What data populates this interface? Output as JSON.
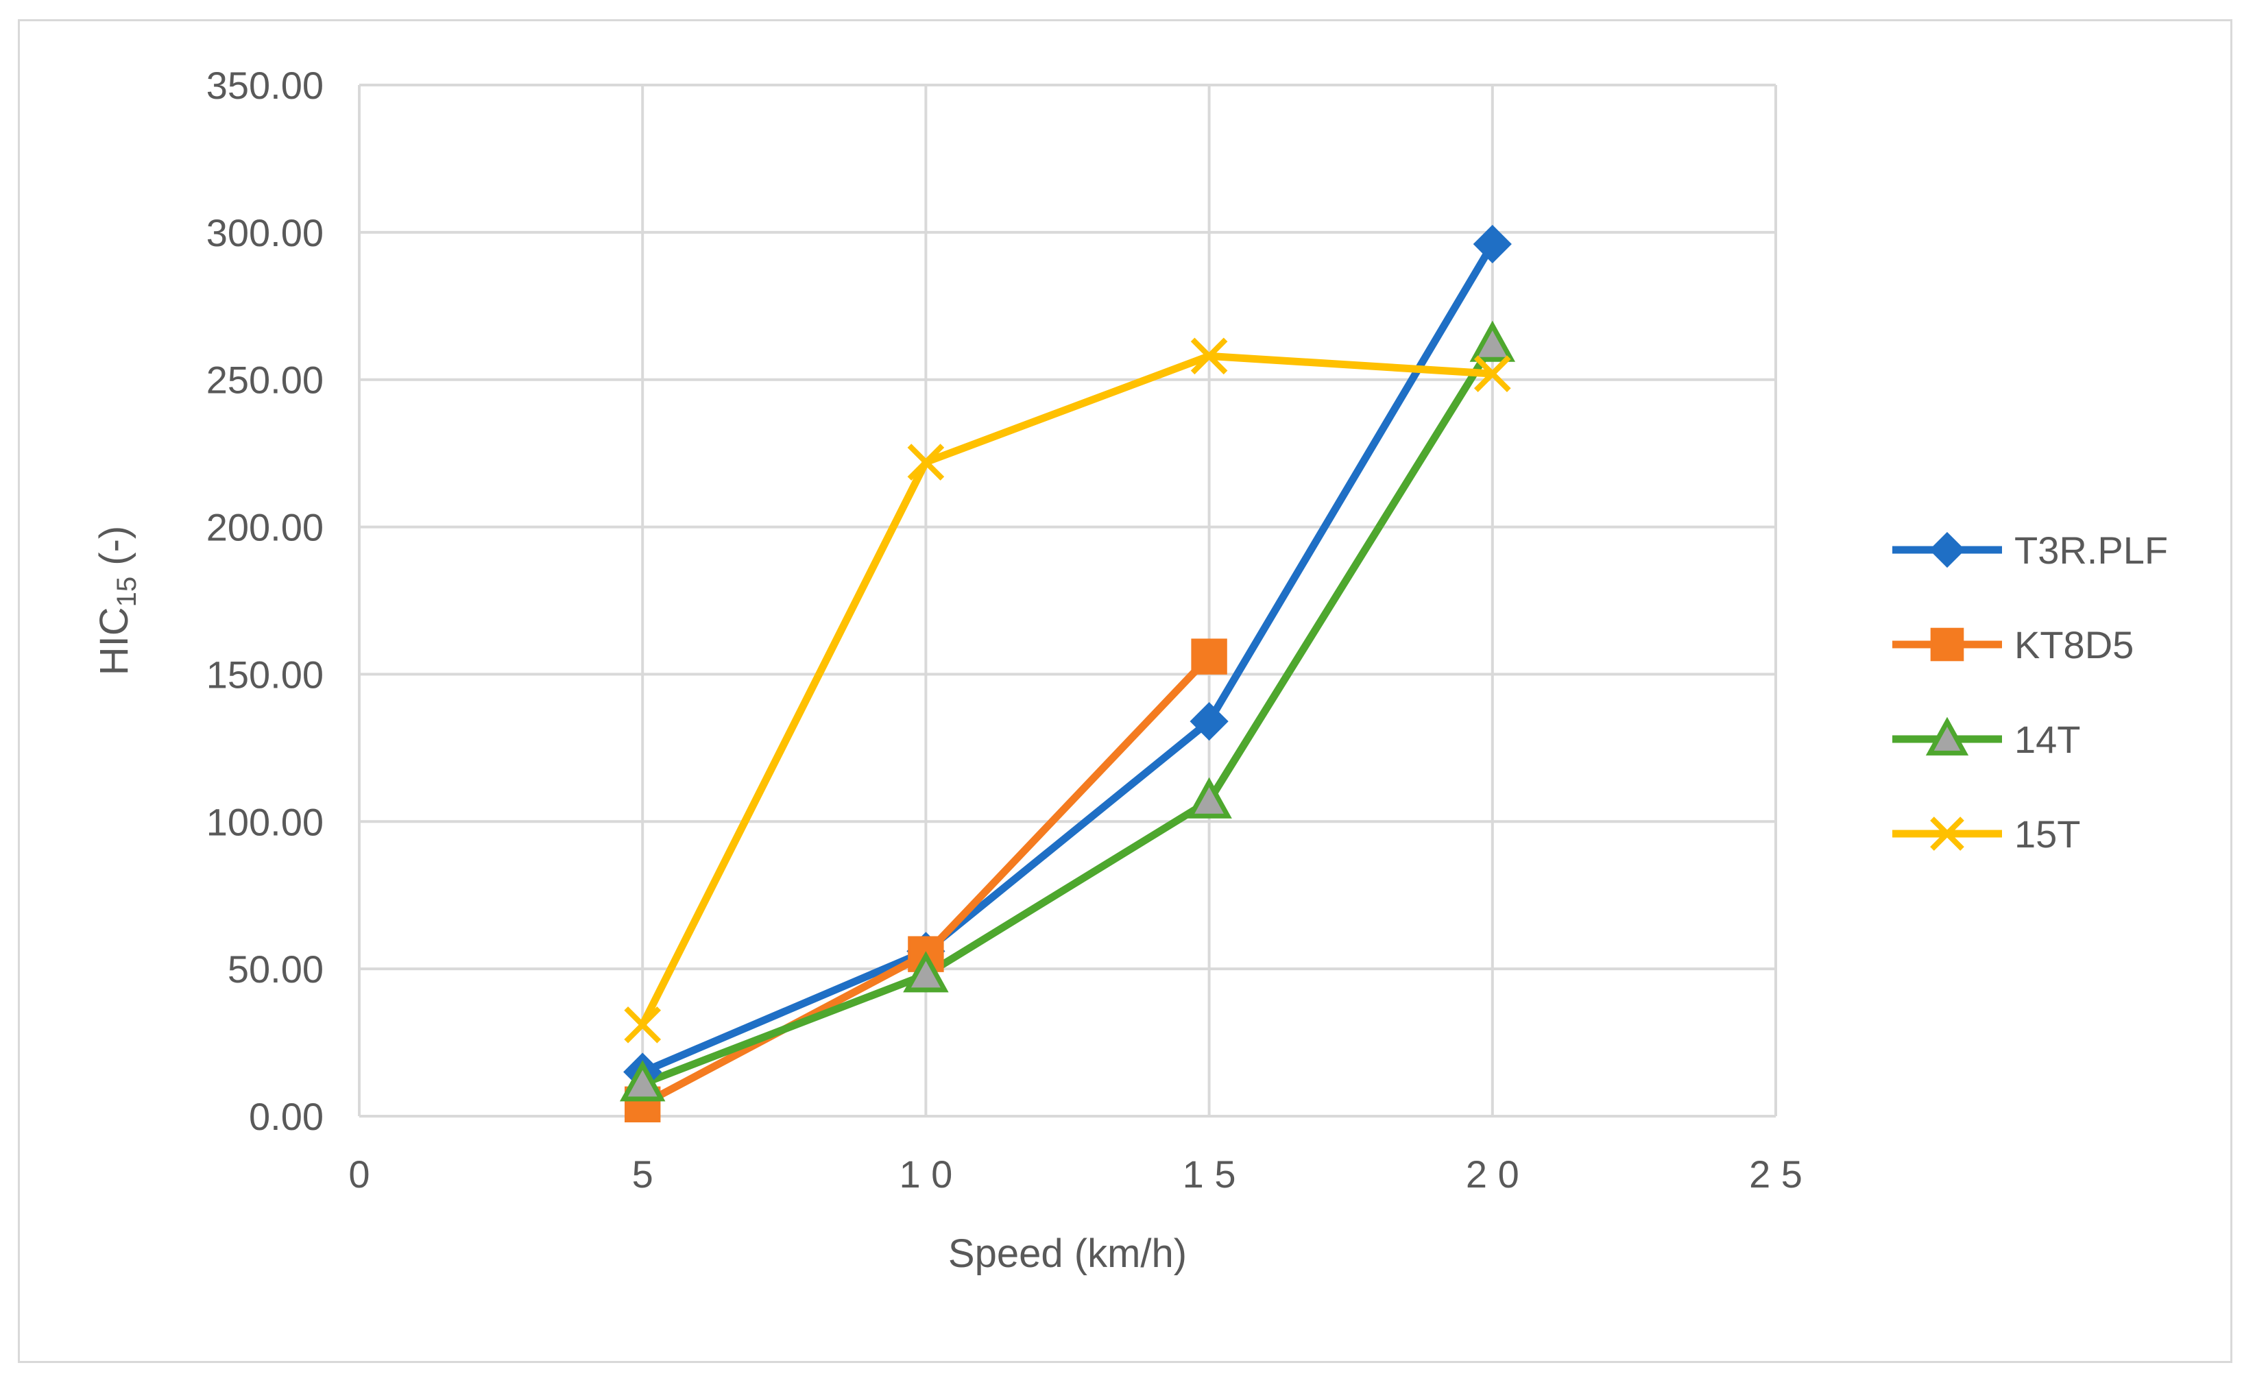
{
  "chart_data": {
    "type": "line",
    "title": "",
    "xlabel": "Speed (km/h)",
    "ylabel": {
      "main": "HIC",
      "subscript": "15",
      "suffix": " (-)"
    },
    "xlim": [
      0,
      25
    ],
    "ylim": [
      0,
      350
    ],
    "x_ticks": [
      0,
      5,
      10,
      15,
      20,
      25
    ],
    "x_tick_labels": [
      "0",
      "5",
      "1 0",
      "1 5",
      "2 0",
      "2 5"
    ],
    "y_ticks": [
      0,
      50,
      100,
      150,
      200,
      250,
      300,
      350
    ],
    "y_tick_labels": [
      "0.00",
      "50.00",
      "100.00",
      "150.00",
      "200.00",
      "250.00",
      "300.00",
      "350.00"
    ],
    "grid": true,
    "legend_position": "right",
    "series": [
      {
        "name": "T3R.PLF",
        "color": "#1f6fc5",
        "marker": "diamond",
        "x": [
          5,
          10,
          15,
          20
        ],
        "y": [
          15,
          56,
          134,
          296
        ]
      },
      {
        "name": "KT8D5",
        "color": "#f47b20",
        "marker": "square",
        "x": [
          5,
          10,
          15
        ],
        "y": [
          4,
          55,
          156
        ]
      },
      {
        "name": "14T",
        "color": "#4ea72e",
        "marker": "triangle",
        "x": [
          5,
          10,
          15,
          20
        ],
        "y": [
          11,
          48,
          107,
          262
        ]
      },
      {
        "name": "15T",
        "color": "#ffc000",
        "marker": "x",
        "x": [
          5,
          10,
          15,
          20
        ],
        "y": [
          31,
          222,
          258,
          252
        ]
      }
    ]
  }
}
